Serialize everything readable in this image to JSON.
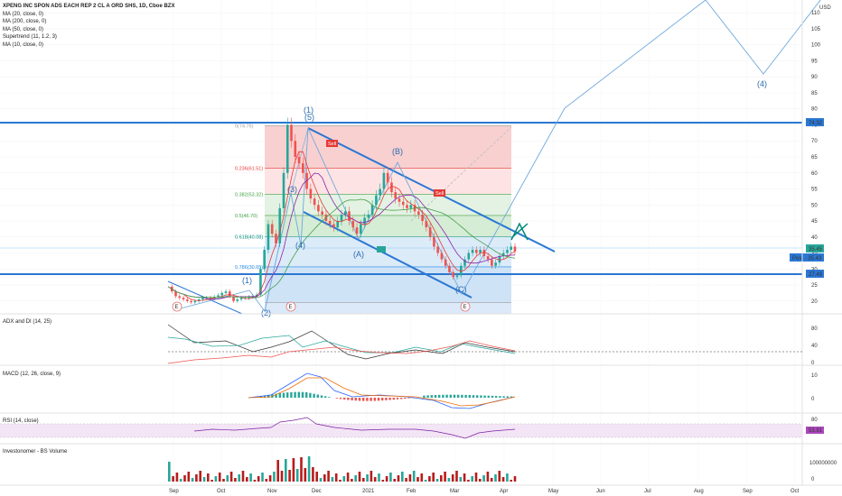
{
  "header": {
    "symbol_title": "XPENG INC SPON ADS EACH REP 2 CL A ORD SHS, 1D, Cboe BZX",
    "indicators": [
      "MA (20, close, 0)",
      "MA (200, close, 0)",
      "MA (50, close, 0)",
      "Supertrend (11, 1.2, 3)",
      "MA (10, close, 0)"
    ]
  },
  "chart_data": [
    {
      "type": "line",
      "name": "price",
      "currency_label": "USD",
      "x_ticks": [
        "Sep",
        "Oct",
        "Nov",
        "Dec",
        "2021",
        "Feb",
        "Mar",
        "Apr",
        "May",
        "Jun",
        "Jul",
        "Aug",
        "Sep",
        "Oct"
      ],
      "y_ticks": [
        20,
        25,
        30,
        35,
        40,
        45,
        50,
        55,
        60,
        65,
        70,
        75,
        80,
        85,
        90,
        95,
        100,
        105,
        110
      ],
      "ylim": [
        16,
        114
      ],
      "price_labels": {
        "resistance": "74.32",
        "close": "35.45",
        "post": "Post · 35.43",
        "support": "27.49"
      },
      "close": [
        24.5,
        23,
        21.5,
        21,
        20.5,
        20,
        19.6,
        20,
        20.5,
        21,
        21,
        20.8,
        21.3,
        21.8,
        22.5,
        23,
        21.5,
        20,
        20.5,
        21,
        21,
        21.2,
        21.5,
        22,
        30,
        36,
        44,
        41,
        38,
        49,
        60,
        75,
        70,
        65,
        63,
        60,
        55,
        52,
        50,
        48,
        47,
        45,
        44,
        43,
        45,
        47,
        48,
        45,
        43,
        41,
        44,
        46,
        47,
        50,
        53,
        55,
        60,
        57,
        54,
        52,
        51,
        50,
        49,
        50,
        48,
        47,
        45,
        43,
        40,
        37,
        35,
        33,
        31,
        29,
        27.5,
        28,
        31,
        33,
        35,
        36,
        35,
        36,
        34,
        33,
        31,
        32,
        34,
        35,
        36,
        37,
        35.5
      ],
      "fib_levels": [
        {
          "label": "0(74.76)",
          "value": 74.76
        },
        {
          "label": "0.236(61.51)",
          "value": 61.51
        },
        {
          "label": "0.382(53.32)",
          "value": 53.32
        },
        {
          "label": "0.5(46.70)",
          "value": 46.7
        },
        {
          "label": "0.618(40.08)",
          "value": 40.08
        },
        {
          "label": "0.786(30.65)",
          "value": 30.65
        },
        {
          "label": "",
          "value": 19.5
        }
      ],
      "wave_labels": [
        "(1)",
        "(5)",
        "(3)",
        "(4)",
        "(2)",
        "(1)",
        "(B)",
        "(A)",
        "(C)",
        "(4)"
      ],
      "markers": [
        "E",
        "E",
        "E"
      ],
      "signal_labels": [
        "Sell",
        "Sell"
      ]
    },
    {
      "type": "line",
      "name": "ADX and DI (14, 25)",
      "title": "ADX and DI (14, 25)",
      "y_ticks": [
        0,
        40,
        80
      ],
      "ylim": [
        0,
        100
      ]
    },
    {
      "type": "bar",
      "name": "MACD (12, 26, close, 9)",
      "title": "MACD (12, 26, close, 9)",
      "y_ticks": [
        0,
        10
      ],
      "ylim": [
        -6,
        14
      ]
    },
    {
      "type": "line",
      "name": "RSI (14, close)",
      "title": "RSI (14, close)",
      "y_ticks": [
        80
      ],
      "ylim": [
        20,
        90
      ],
      "value_label": "53.91"
    },
    {
      "type": "bar",
      "name": "Investonomer - BS Volume",
      "title": "Investonomer - BS Volume",
      "y_ticks": [
        "100000000",
        "0"
      ]
    }
  ],
  "colors": {
    "blue_line": "#2a77d3",
    "fib_red": "#f6c8c8",
    "fib_green": "#d8eed8",
    "fib_blue": "#cfe3f7",
    "fib_grey": "#dddddd",
    "up": "#26a69a",
    "down": "#ef5350",
    "ma_red": "#e53935",
    "ma_green": "#43a047",
    "ma_purple": "#8e24aa"
  }
}
